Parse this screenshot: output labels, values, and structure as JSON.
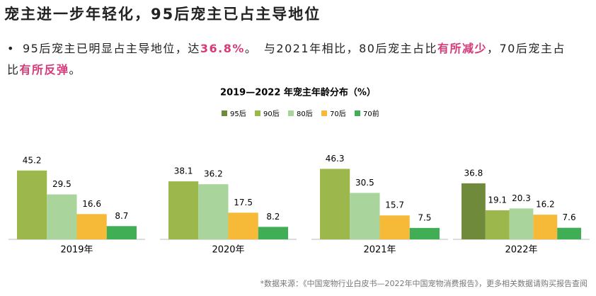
{
  "title": "宠主进一步年轻化，95后宠主已占主导地位",
  "bullet": [
    "95后宠主已明显占主导地位，达",
    "36.8%",
    "。　与2021年相比，80后宠主占比",
    "有所减少",
    "，70后宠主占比",
    "有所反弹",
    "。"
  ],
  "source": "*数据来源：《中国宠物行业白皮书—2022年中国宠物消费报告》，更多相关数据请购买报告查阅",
  "chart_data": {
    "type": "bar",
    "title": "2019—2022 年宠主年龄分布（%）",
    "categories": [
      "2019年",
      "2020年",
      "2021年",
      "2022年"
    ],
    "series": [
      {
        "name": "95后",
        "color": "#6f8a3b",
        "values": [
          null,
          null,
          null,
          36.8
        ]
      },
      {
        "name": "90后",
        "color": "#9cb84c",
        "values": [
          45.2,
          38.1,
          46.3,
          19.1
        ]
      },
      {
        "name": "80后",
        "color": "#a9d59c",
        "values": [
          29.5,
          36.2,
          30.5,
          20.3
        ]
      },
      {
        "name": "70后",
        "color": "#f7b938",
        "values": [
          16.6,
          17.5,
          15.7,
          16.2
        ]
      },
      {
        "name": "70前",
        "color": "#3fae55",
        "values": [
          8.7,
          8.2,
          7.5,
          7.6
        ]
      }
    ]
  }
}
